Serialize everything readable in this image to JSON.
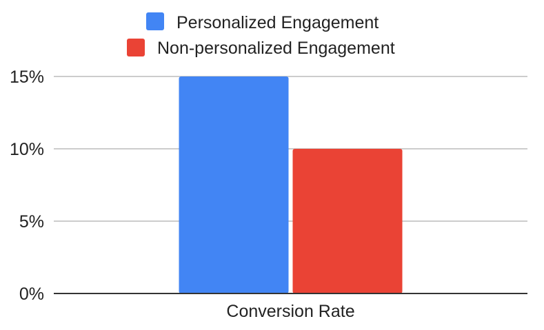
{
  "chart_data": {
    "type": "bar",
    "categories": [
      "Conversion Rate"
    ],
    "series": [
      {
        "name": "Personalized Engagement",
        "values": [
          15
        ],
        "color": "#4285F4"
      },
      {
        "name": "Non-personalized Engagement",
        "values": [
          10
        ],
        "color": "#EA4335"
      }
    ],
    "ylim": [
      0,
      15
    ],
    "yticks": [
      0,
      5,
      10,
      15
    ],
    "ytick_labels": [
      "0%",
      "5%",
      "10%",
      "15%"
    ],
    "grid": true,
    "legend_position": "top-center",
    "gridline_color": "#cccccc",
    "axis_color": "#333333"
  }
}
